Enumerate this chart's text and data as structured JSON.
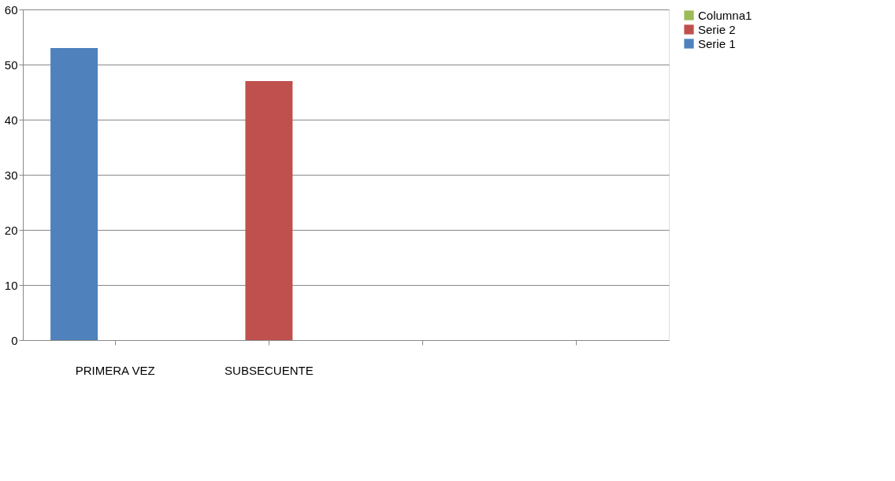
{
  "chart_data": {
    "type": "bar",
    "categories": [
      "PRIMERA VEZ",
      "SUBSECUENTE",
      null,
      null
    ],
    "series": [
      {
        "name": "Serie 1",
        "color": "#4f81bd",
        "values": [
          53,
          null,
          null,
          null
        ]
      },
      {
        "name": "Serie 2",
        "color": "#c0504d",
        "values": [
          null,
          47,
          null,
          null
        ]
      },
      {
        "name": "Columna1",
        "color": "#9bbb59",
        "values": [
          null,
          null,
          null,
          null
        ]
      }
    ],
    "ylim": [
      0,
      60
    ],
    "yticks": [
      0,
      10,
      20,
      30,
      40,
      50,
      60
    ],
    "grid": "y",
    "legend": "right"
  }
}
